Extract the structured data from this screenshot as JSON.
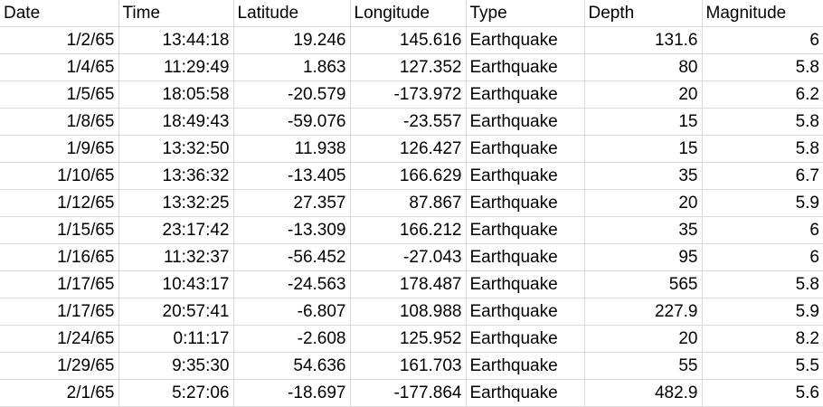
{
  "sheet": {
    "headers": {
      "date": "Date",
      "time": "Time",
      "latitude": "Latitude",
      "longitude": "Longitude",
      "type": "Type",
      "depth": "Depth",
      "magnitude": "Magnitude"
    },
    "rows": [
      {
        "date": "1/2/65",
        "time": "13:44:18",
        "latitude": "19.246",
        "longitude": "145.616",
        "type": "Earthquake",
        "depth": "131.6",
        "magnitude": "6"
      },
      {
        "date": "1/4/65",
        "time": "11:29:49",
        "latitude": "1.863",
        "longitude": "127.352",
        "type": "Earthquake",
        "depth": "80",
        "magnitude": "5.8"
      },
      {
        "date": "1/5/65",
        "time": "18:05:58",
        "latitude": "-20.579",
        "longitude": "-173.972",
        "type": "Earthquake",
        "depth": "20",
        "magnitude": "6.2"
      },
      {
        "date": "1/8/65",
        "time": "18:49:43",
        "latitude": "-59.076",
        "longitude": "-23.557",
        "type": "Earthquake",
        "depth": "15",
        "magnitude": "5.8"
      },
      {
        "date": "1/9/65",
        "time": "13:32:50",
        "latitude": "11.938",
        "longitude": "126.427",
        "type": "Earthquake",
        "depth": "15",
        "magnitude": "5.8"
      },
      {
        "date": "1/10/65",
        "time": "13:36:32",
        "latitude": "-13.405",
        "longitude": "166.629",
        "type": "Earthquake",
        "depth": "35",
        "magnitude": "6.7"
      },
      {
        "date": "1/12/65",
        "time": "13:32:25",
        "latitude": "27.357",
        "longitude": "87.867",
        "type": "Earthquake",
        "depth": "20",
        "magnitude": "5.9"
      },
      {
        "date": "1/15/65",
        "time": "23:17:42",
        "latitude": "-13.309",
        "longitude": "166.212",
        "type": "Earthquake",
        "depth": "35",
        "magnitude": "6"
      },
      {
        "date": "1/16/65",
        "time": "11:32:37",
        "latitude": "-56.452",
        "longitude": "-27.043",
        "type": "Earthquake",
        "depth": "95",
        "magnitude": "6"
      },
      {
        "date": "1/17/65",
        "time": "10:43:17",
        "latitude": "-24.563",
        "longitude": "178.487",
        "type": "Earthquake",
        "depth": "565",
        "magnitude": "5.8"
      },
      {
        "date": "1/17/65",
        "time": "20:57:41",
        "latitude": "-6.807",
        "longitude": "108.988",
        "type": "Earthquake",
        "depth": "227.9",
        "magnitude": "5.9"
      },
      {
        "date": "1/24/65",
        "time": "0:11:17",
        "latitude": "-2.608",
        "longitude": "125.952",
        "type": "Earthquake",
        "depth": "20",
        "magnitude": "8.2"
      },
      {
        "date": "1/29/65",
        "time": "9:35:30",
        "latitude": "54.636",
        "longitude": "161.703",
        "type": "Earthquake",
        "depth": "55",
        "magnitude": "5.5"
      },
      {
        "date": "2/1/65",
        "time": "5:27:06",
        "latitude": "-18.697",
        "longitude": "-177.864",
        "type": "Earthquake",
        "depth": "482.9",
        "magnitude": "5.6"
      }
    ]
  },
  "colors": {
    "gridline": "#d9d9d9",
    "text": "#000000",
    "background": "#ffffff"
  }
}
